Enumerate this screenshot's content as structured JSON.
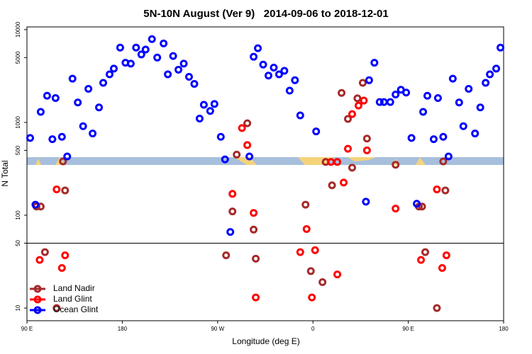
{
  "chart_data": {
    "type": "scatter",
    "title": "5N-10N August (Ver 9)   2014-09-06 to 2018-12-01",
    "x_label": "Longitude (deg E)",
    "y_label": "N Total",
    "log_y": true,
    "xlim": [
      90,
      540
    ],
    "ylim": [
      7.3,
      10700
    ],
    "xticks": [
      {
        "value": 90,
        "label": "90 E"
      },
      180,
      {
        "value": 270,
        "label": "90 W"
      },
      {
        "value": 360,
        "label": "0"
      },
      {
        "value": 450,
        "label": "90 E"
      },
      {
        "value": 540,
        "label": "180"
      }
    ],
    "yticks": [
      10,
      50,
      100,
      500,
      1000,
      5000,
      10000
    ],
    "reference_line": 50,
    "legend": "lower left",
    "series": [
      {
        "name": "Land Nadir",
        "color": "#a52a2a",
        "x": [
          99,
          103,
          107,
          118,
          124,
          126,
          278,
          284,
          288,
          298,
          304,
          306,
          353,
          358,
          369,
          372,
          378,
          387,
          393,
          397,
          402,
          407,
          411,
          438,
          460,
          463,
          466,
          477,
          483,
          485
        ],
        "values": [
          124,
          124,
          40,
          10,
          380,
          185,
          37,
          110,
          450,
          980,
          70,
          34,
          130,
          25,
          19,
          375,
          210,
          2080,
          1090,
          325,
          1820,
          2670,
          670,
          350,
          124,
          124,
          40,
          10,
          380,
          185
        ]
      },
      {
        "name": "Land Glint",
        "color": "#ff0000",
        "x": [
          102,
          118,
          123,
          126,
          284,
          293,
          298,
          304,
          306,
          348,
          354,
          359,
          362,
          377,
          383,
          383,
          389,
          393,
          397,
          403,
          408,
          411,
          438,
          462,
          477,
          482,
          486
        ],
        "values": [
          33,
          190,
          27,
          37,
          170,
          870,
          570,
          106,
          13,
          40,
          71,
          13,
          42,
          375,
          375,
          23,
          225,
          520,
          1230,
          1520,
          1720,
          500,
          118,
          33,
          190,
          27,
          37
        ]
      },
      {
        "name": "Ocean Glint",
        "color": "#0000ff",
        "x": [
          93,
          98,
          103,
          109,
          114,
          117,
          123,
          128,
          133,
          138,
          143,
          148,
          152,
          158,
          162,
          168,
          172,
          178,
          183,
          188,
          193,
          198,
          202,
          208,
          213,
          219,
          223,
          228,
          233,
          238,
          243,
          248,
          253,
          257,
          263,
          267,
          273,
          277,
          282,
          300,
          304,
          308,
          313,
          318,
          323,
          328,
          333,
          338,
          343,
          348,
          363,
          410,
          413,
          418,
          423,
          427,
          433,
          438,
          443,
          448,
          453,
          458,
          464,
          468,
          474,
          478,
          483,
          488,
          492,
          498,
          502,
          507,
          513,
          518,
          523,
          527,
          533,
          537
        ],
        "values": [
          680,
          130,
          1300,
          1940,
          660,
          1830,
          700,
          430,
          2960,
          1640,
          910,
          2300,
          760,
          1450,
          2670,
          3300,
          3800,
          6400,
          4400,
          4300,
          6400,
          5400,
          6100,
          7900,
          5000,
          7100,
          3300,
          5200,
          3700,
          4300,
          3100,
          2600,
          1100,
          1550,
          1330,
          1580,
          700,
          400,
          66,
          430,
          5100,
          6300,
          4200,
          3200,
          3900,
          3300,
          3600,
          2200,
          2850,
          1190,
          800,
          140,
          2850,
          4400,
          1660,
          1660,
          1660,
          2000,
          2250,
          2100,
          680,
          133,
          1300,
          1940,
          660,
          1830,
          700,
          430,
          2960,
          1640,
          910,
          2300,
          760,
          1450,
          2670,
          3300,
          3800,
          6400
        ]
      }
    ]
  }
}
